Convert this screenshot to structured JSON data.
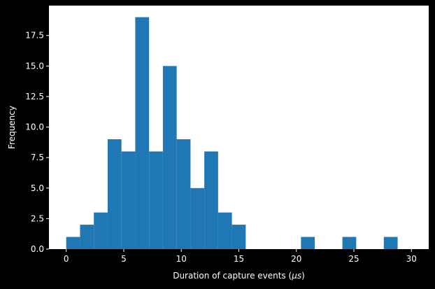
{
  "chart_data": {
    "type": "bar",
    "title": "",
    "xlabel_prefix": "Duration of capture events (",
    "xlabel_unit": "μs",
    "xlabel_suffix": ")",
    "ylabel": "Frequency",
    "bin_width": 1.2,
    "bins": [
      {
        "start": 0.0,
        "end": 1.2,
        "count": 1
      },
      {
        "start": 1.2,
        "end": 2.4,
        "count": 2
      },
      {
        "start": 2.4,
        "end": 3.6,
        "count": 3
      },
      {
        "start": 3.6,
        "end": 4.8,
        "count": 9
      },
      {
        "start": 4.8,
        "end": 6.0,
        "count": 8
      },
      {
        "start": 6.0,
        "end": 7.2,
        "count": 19
      },
      {
        "start": 7.2,
        "end": 8.4,
        "count": 8
      },
      {
        "start": 8.4,
        "end": 9.6,
        "count": 15
      },
      {
        "start": 9.6,
        "end": 10.8,
        "count": 9
      },
      {
        "start": 10.8,
        "end": 12.0,
        "count": 5
      },
      {
        "start": 12.0,
        "end": 13.2,
        "count": 8
      },
      {
        "start": 13.2,
        "end": 14.4,
        "count": 3
      },
      {
        "start": 14.4,
        "end": 15.6,
        "count": 2
      },
      {
        "start": 20.4,
        "end": 21.6,
        "count": 1
      },
      {
        "start": 24.0,
        "end": 25.2,
        "count": 1
      },
      {
        "start": 27.6,
        "end": 28.8,
        "count": 1
      }
    ],
    "xlim": [
      -1.5,
      31.5
    ],
    "ylim": [
      0,
      19.95
    ],
    "xticks": [
      0,
      5,
      10,
      15,
      20,
      25,
      30
    ],
    "xtick_labels": [
      "0",
      "5",
      "10",
      "15",
      "20",
      "25",
      "30"
    ],
    "yticks": [
      0,
      2.5,
      5,
      7.5,
      10,
      12.5,
      15,
      17.5
    ],
    "ytick_labels": [
      "0.0",
      "2.5",
      "5.0",
      "7.5",
      "10.0",
      "12.5",
      "15.0",
      "17.5"
    ],
    "bar_color": "#1f77b4",
    "plot_background": "#ffffff",
    "figure_background": "#000000",
    "text_color": "#ffffff",
    "grid": false,
    "legend": false
  }
}
